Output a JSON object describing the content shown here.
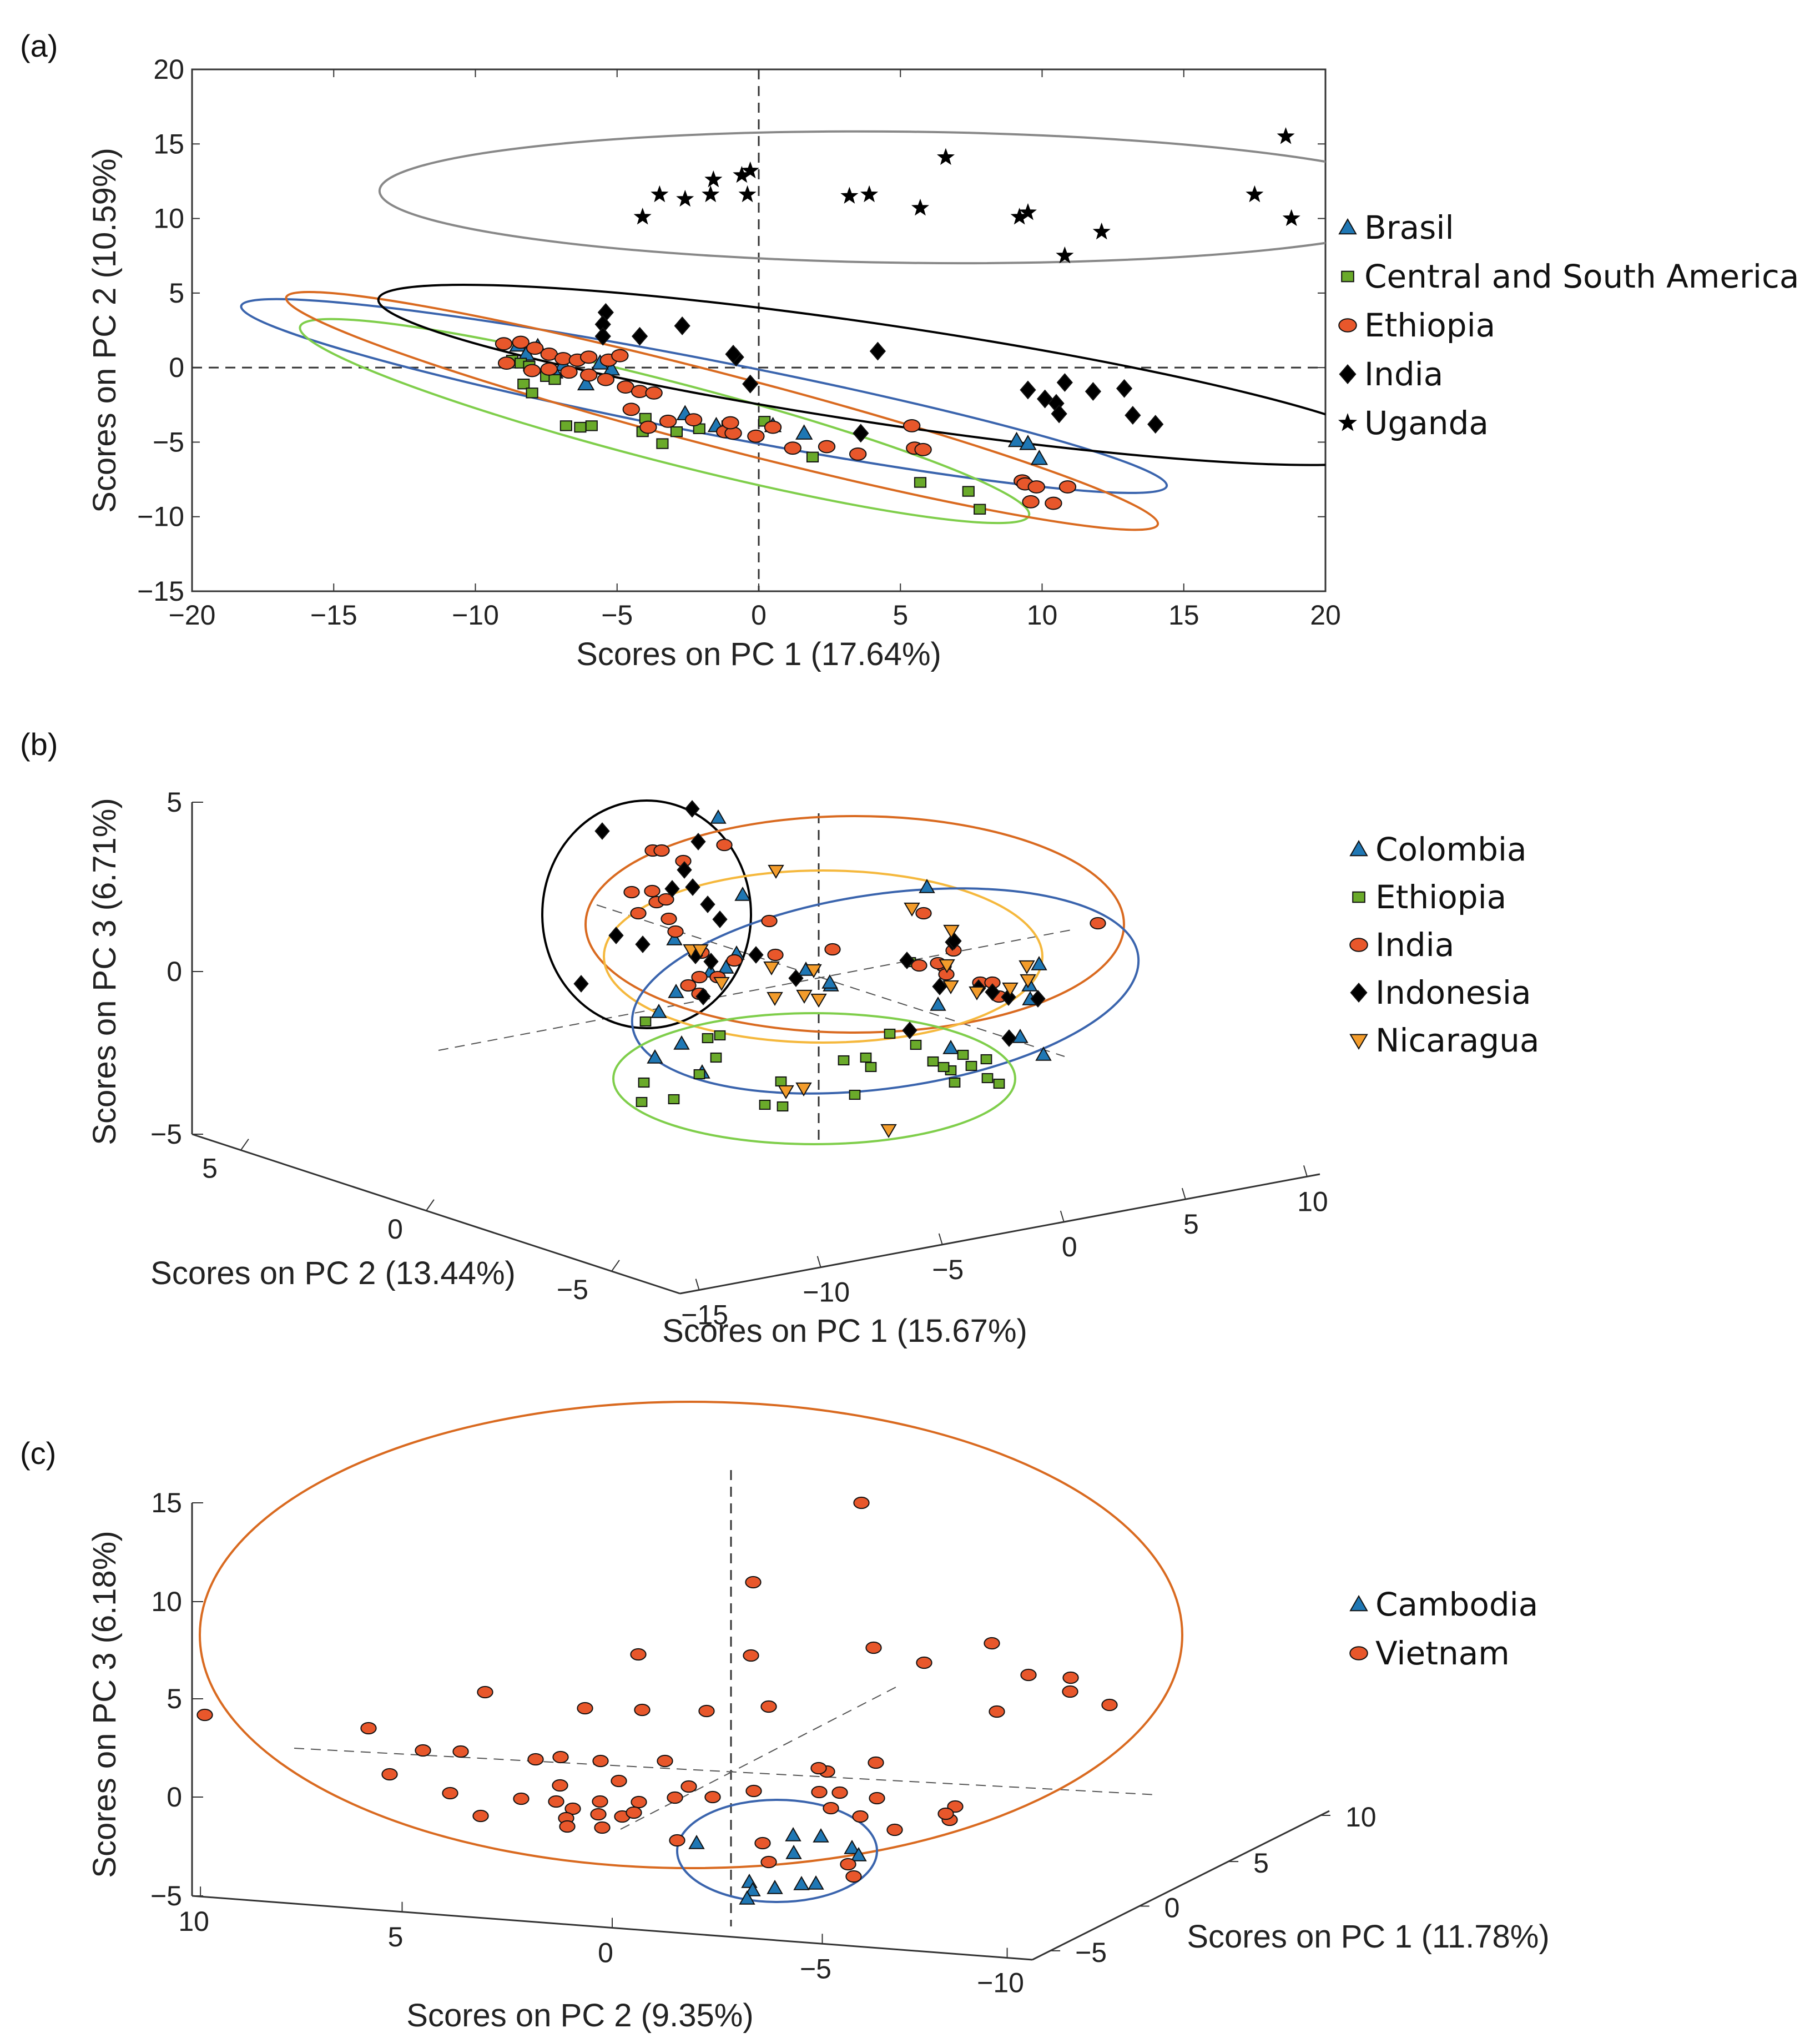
{
  "colors": {
    "blue": "#1f77b4",
    "green": "#6aaa2a",
    "orange": "#e8572b",
    "black": "#000000",
    "yellow_orange": "#f39c2b",
    "gray": "#888888",
    "ell_blue": "#3a64ad",
    "ell_green": "#7fce4b",
    "ell_orange": "#d96a20",
    "ell_yellow": "#f5b83d"
  },
  "chart_data": [
    {
      "panel_label": "(a)",
      "type": "scatter",
      "xlabel": "Scores on PC 1 (17.64%)",
      "ylabel": "Scores on PC 2 (10.59%)",
      "xlim": [
        -20,
        20
      ],
      "ylim": [
        -15,
        20
      ],
      "xticks": [
        "−20",
        "−15",
        "−10",
        "−5",
        "0",
        "5",
        "10",
        "15",
        "20"
      ],
      "yticks": [
        "−15",
        "−10",
        "−5",
        "0",
        "5",
        "10",
        "15",
        "20"
      ],
      "legend": [
        "Brasil",
        "Central and South America",
        "Ethiopia",
        "India",
        "Uganda"
      ],
      "series": [
        {
          "name": "Brasil",
          "marker": "triangle",
          "color": "blue",
          "points": [
            [
              -8.5,
              1.5
            ],
            [
              -7.8,
              1.4
            ],
            [
              -8.2,
              0.9
            ],
            [
              -6.9,
              0.2
            ],
            [
              -5.2,
              -0.1
            ],
            [
              -6.1,
              -1.1
            ],
            [
              -7.2,
              -0.3
            ],
            [
              -2.6,
              -3.1
            ],
            [
              -1.5,
              -3.9
            ],
            [
              0.5,
              -3.9
            ],
            [
              1.6,
              -4.4
            ],
            [
              9.1,
              -4.9
            ],
            [
              9.5,
              -5.1
            ],
            [
              9.9,
              -6.1
            ],
            [
              -5.6,
              0.3
            ]
          ]
        },
        {
          "name": "Central and South America",
          "marker": "square",
          "color": "green",
          "points": [
            [
              -8.7,
              0.5
            ],
            [
              -8.4,
              0.3
            ],
            [
              -8.1,
              0.1
            ],
            [
              -7.5,
              -0.6
            ],
            [
              -8.3,
              -1.1
            ],
            [
              -8.0,
              -1.7
            ],
            [
              -6.8,
              -3.9
            ],
            [
              -6.3,
              -4.0
            ],
            [
              -5.9,
              -3.9
            ],
            [
              -4.1,
              -4.3
            ],
            [
              -3.4,
              -5.1
            ],
            [
              -2.9,
              -4.3
            ],
            [
              -2.1,
              -4.1
            ],
            [
              -1.1,
              -3.9
            ],
            [
              0.2,
              -3.6
            ],
            [
              1.9,
              -6.0
            ],
            [
              5.7,
              -7.7
            ],
            [
              7.4,
              -8.3
            ],
            [
              7.8,
              -9.5
            ],
            [
              -4.0,
              -3.4
            ],
            [
              -7.2,
              -0.8
            ]
          ]
        },
        {
          "name": "Ethiopia",
          "marker": "circle",
          "color": "orange",
          "points": [
            [
              -9.0,
              1.6
            ],
            [
              -8.4,
              1.7
            ],
            [
              -7.9,
              1.3
            ],
            [
              -7.4,
              0.9
            ],
            [
              -6.9,
              0.6
            ],
            [
              -6.4,
              0.5
            ],
            [
              -6.0,
              0.7
            ],
            [
              -5.3,
              0.5
            ],
            [
              -4.9,
              0.8
            ],
            [
              -8.9,
              0.3
            ],
            [
              -8.0,
              -0.2
            ],
            [
              -7.4,
              -0.1
            ],
            [
              -6.7,
              -0.3
            ],
            [
              -6.0,
              -0.5
            ],
            [
              -5.4,
              -0.8
            ],
            [
              -4.7,
              -1.3
            ],
            [
              -4.2,
              -1.6
            ],
            [
              -3.7,
              -1.7
            ],
            [
              -3.2,
              -3.6
            ],
            [
              -3.9,
              -4.0
            ],
            [
              -2.3,
              -3.5
            ],
            [
              -1.2,
              -4.3
            ],
            [
              -0.9,
              -4.4
            ],
            [
              -0.1,
              -4.6
            ],
            [
              0.5,
              -4.0
            ],
            [
              1.2,
              -5.4
            ],
            [
              2.4,
              -5.3
            ],
            [
              3.5,
              -5.8
            ],
            [
              5.4,
              -3.9
            ],
            [
              5.5,
              -5.4
            ],
            [
              5.8,
              -5.5
            ],
            [
              9.3,
              -7.6
            ],
            [
              9.4,
              -7.8
            ],
            [
              9.8,
              -8.0
            ],
            [
              10.9,
              -8.0
            ],
            [
              10.4,
              -9.1
            ],
            [
              9.6,
              -9.0
            ],
            [
              -1.0,
              -3.7
            ],
            [
              -4.5,
              -2.8
            ]
          ]
        },
        {
          "name": "India",
          "marker": "diamond",
          "color": "black",
          "points": [
            [
              -5.4,
              3.7
            ],
            [
              -5.5,
              2.9
            ],
            [
              -5.5,
              2.1
            ],
            [
              -4.2,
              2.1
            ],
            [
              -2.7,
              2.8
            ],
            [
              -0.8,
              0.7
            ],
            [
              -0.3,
              -1.1
            ],
            [
              4.2,
              1.1
            ],
            [
              9.5,
              -1.5
            ],
            [
              10.1,
              -2.1
            ],
            [
              10.5,
              -2.4
            ],
            [
              10.6,
              -3.1
            ],
            [
              10.8,
              -1.0
            ],
            [
              11.8,
              -1.6
            ],
            [
              12.9,
              -1.4
            ],
            [
              13.2,
              -3.2
            ],
            [
              14.0,
              -3.8
            ],
            [
              -0.9,
              0.9
            ],
            [
              3.6,
              -4.4
            ]
          ]
        },
        {
          "name": "Uganda",
          "marker": "star",
          "color": "black",
          "points": [
            [
              -4.1,
              10.1
            ],
            [
              -3.5,
              11.6
            ],
            [
              -2.6,
              11.3
            ],
            [
              -1.7,
              11.6
            ],
            [
              -1.6,
              12.6
            ],
            [
              -0.4,
              11.6
            ],
            [
              -0.6,
              12.9
            ],
            [
              -0.3,
              13.2
            ],
            [
              3.2,
              11.5
            ],
            [
              3.9,
              11.6
            ],
            [
              5.7,
              10.7
            ],
            [
              6.6,
              14.1
            ],
            [
              9.2,
              10.1
            ],
            [
              9.5,
              10.4
            ],
            [
              10.8,
              7.5
            ],
            [
              12.1,
              9.1
            ],
            [
              17.5,
              11.6
            ],
            [
              18.6,
              15.5
            ],
            [
              18.8,
              10.0
            ]
          ]
        }
      ],
      "ellipses": [
        "Brasil",
        "Central and South America",
        "Ethiopia",
        "India",
        "Uganda"
      ]
    },
    {
      "panel_label": "(b)",
      "type": "scatter",
      "xlabel": "Scores on PC 1 (15.67%)",
      "ylabel": "Scores on PC 3 (6.71%)",
      "zlabel": "Scores on PC 2 (13.44%)",
      "pc1_ticks": [
        "−15",
        "−10",
        "−5",
        "0",
        "5",
        "10"
      ],
      "pc2_ticks": [
        "5",
        "0",
        "−5"
      ],
      "pc3_ticks": [
        "5",
        "0",
        "−5"
      ],
      "legend": [
        "Colombia",
        "Ethiopia",
        "India",
        "Indonesia",
        "Nicaragua"
      ],
      "series": [
        {
          "name": "Colombia",
          "marker": "triangle",
          "color": "blue",
          "count": 22
        },
        {
          "name": "Ethiopia",
          "marker": "square",
          "color": "green",
          "count": 27
        },
        {
          "name": "India",
          "marker": "circle",
          "color": "orange",
          "count": 30
        },
        {
          "name": "Indonesia",
          "marker": "diamond",
          "color": "black",
          "count": 26
        },
        {
          "name": "Nicaragua",
          "marker": "triangle-down",
          "color": "yellow_orange",
          "count": 20
        }
      ]
    },
    {
      "panel_label": "(c)",
      "type": "scatter",
      "xlabel": "Scores on PC 1 (11.78%)",
      "ylabel": "Scores on PC 3 (6.18%)",
      "zlabel": "Scores on PC 2 (9.35%)",
      "pc3_ticks": [
        "15",
        "10",
        "5",
        "0",
        "−5"
      ],
      "pc2_ticks": [
        "10",
        "5",
        "0",
        "−5",
        "−10"
      ],
      "pc1_ticks": [
        "10",
        "5",
        "0",
        "−5"
      ],
      "legend": [
        "Cambodia",
        "Vietnam"
      ],
      "series": [
        {
          "name": "Cambodia",
          "marker": "triangle",
          "color": "blue",
          "count": 12
        },
        {
          "name": "Vietnam",
          "marker": "circle",
          "color": "orange",
          "count": 62
        }
      ]
    }
  ]
}
